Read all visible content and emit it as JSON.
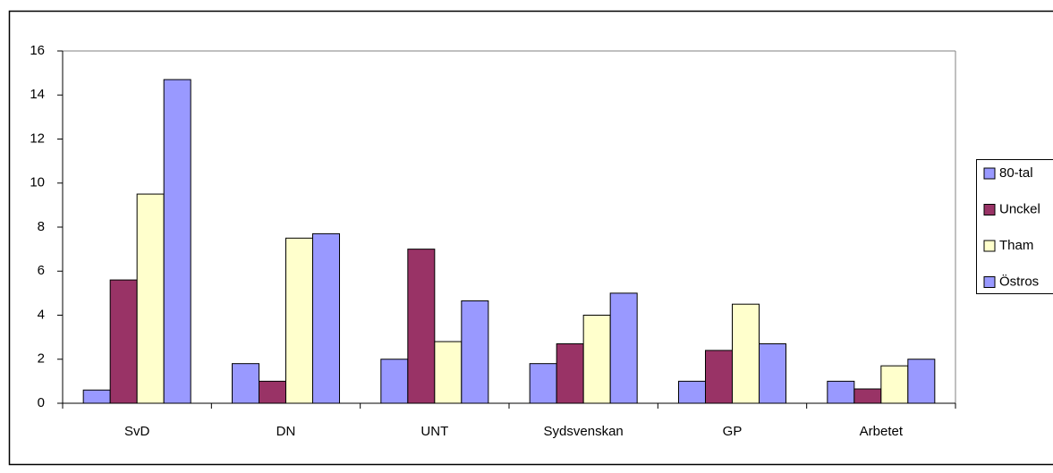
{
  "chart_data": {
    "type": "bar",
    "categories": [
      "SvD",
      "DN",
      "UNT",
      "Sydsvenskan",
      "GP",
      "Arbetet"
    ],
    "series": [
      {
        "name": "80-tal",
        "color": "#9999ff",
        "values": [
          0.6,
          1.8,
          2.0,
          1.8,
          1.0,
          1.0
        ]
      },
      {
        "name": "Unckel",
        "color": "#993366",
        "values": [
          5.6,
          1.0,
          7.0,
          2.7,
          2.4,
          0.65
        ]
      },
      {
        "name": "Tham",
        "color": "#ffffcc",
        "values": [
          9.5,
          7.5,
          2.8,
          4.0,
          4.5,
          1.7
        ]
      },
      {
        "name": "Östros",
        "color": "#9999ff",
        "values": [
          14.7,
          7.7,
          4.65,
          5.0,
          2.7,
          2.0
        ]
      }
    ],
    "ylim": [
      0,
      16
    ],
    "yticks": [
      0,
      2,
      4,
      6,
      8,
      10,
      12,
      14,
      16
    ],
    "grid": false,
    "legend": "right"
  }
}
